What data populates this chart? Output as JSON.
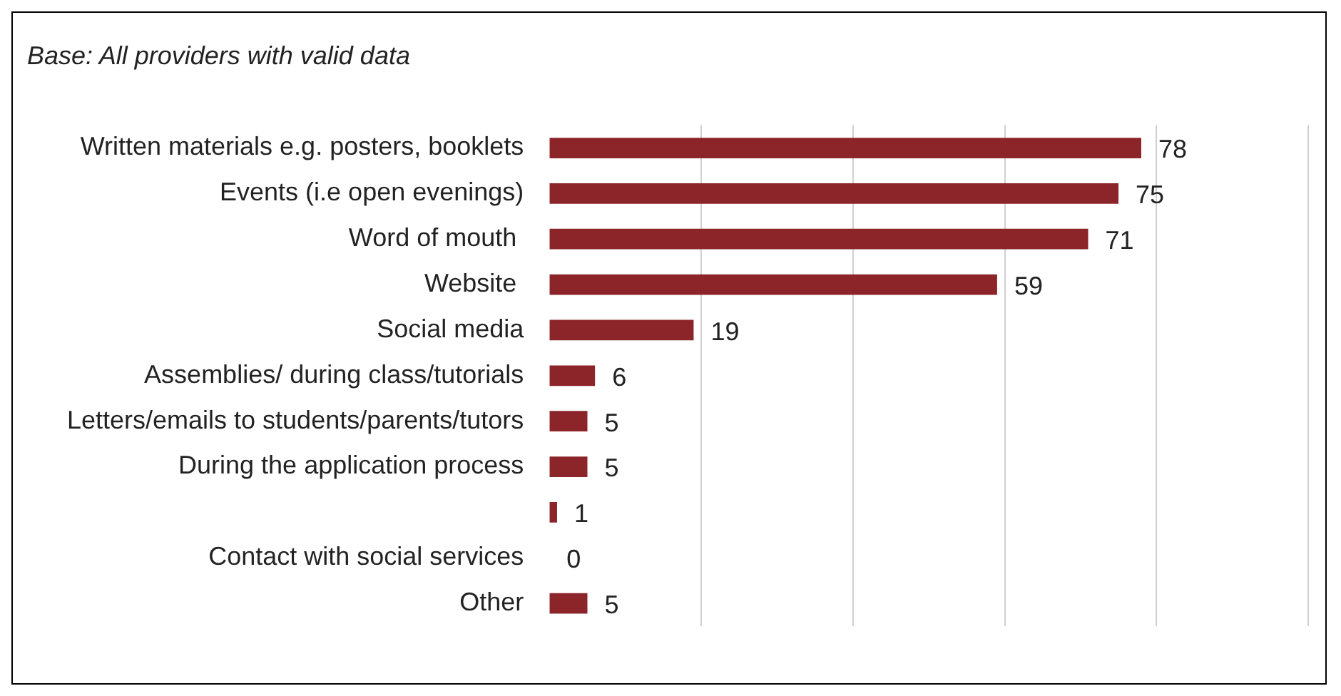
{
  "chart_data": {
    "type": "bar",
    "orientation": "horizontal",
    "subtitle": "Base: All providers with valid data",
    "categories": [
      "Written materials e.g. posters, booklets",
      "Events (i.e open evenings)",
      "Word of mouth ",
      "Website ",
      "Social media",
      "Assemblies/ during class/tutorials",
      "Letters/emails to students/parents/tutors",
      "During the application process",
      null,
      "Contact with social services",
      "Other"
    ],
    "values": [
      78,
      75,
      71,
      59,
      19,
      6,
      5,
      5,
      1,
      0,
      5
    ],
    "color": "#8b2529",
    "xlim": [
      0,
      100
    ],
    "xticks": [
      {
        "value": 20,
        "label": null
      },
      {
        "value": 40,
        "label": null
      },
      {
        "value": 60,
        "label": null
      },
      {
        "value": 80,
        "label": null
      },
      {
        "value": 100,
        "label": null
      }
    ],
    "grid": "x",
    "tick_labels": "y",
    "data_labels": true,
    "legend": false
  }
}
